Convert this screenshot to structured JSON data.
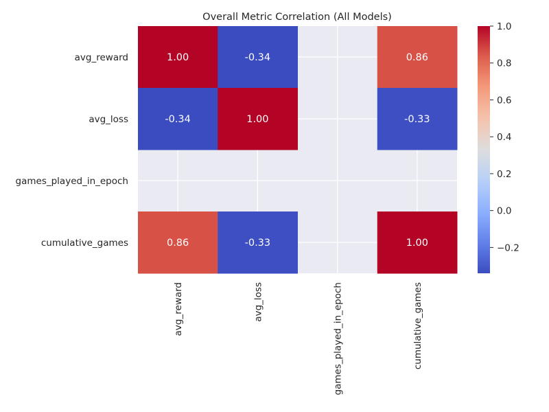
{
  "chart_data": {
    "type": "heatmap",
    "title": "Overall Metric Correlation (All Models)",
    "xlabel": "",
    "ylabel": "",
    "rows": [
      "avg_reward",
      "avg_loss",
      "games_played_in_epoch",
      "cumulative_games"
    ],
    "columns": [
      "avg_reward",
      "avg_loss",
      "games_played_in_epoch",
      "cumulative_games"
    ],
    "values": [
      [
        1.0,
        -0.34,
        null,
        0.86
      ],
      [
        -0.34,
        1.0,
        null,
        -0.33
      ],
      [
        null,
        null,
        null,
        null
      ],
      [
        0.86,
        -0.33,
        null,
        1.0
      ]
    ],
    "annotations": [
      [
        "1.00",
        "-0.34",
        "",
        "0.86"
      ],
      [
        "-0.34",
        "1.00",
        "",
        "-0.33"
      ],
      [
        "",
        "",
        "",
        ""
      ],
      [
        "0.86",
        "-0.33",
        "",
        "1.00"
      ]
    ],
    "colormap": "coolwarm",
    "value_range": [
      -0.34,
      1.0
    ],
    "missing_color": "#eaeaf2",
    "grid": true,
    "colorbar": {
      "ticks": [
        1.0,
        0.8,
        0.6,
        0.4,
        0.2,
        0.0,
        -0.2
      ],
      "tick_labels": [
        "1.0",
        "0.8",
        "0.6",
        "0.4",
        "0.2",
        "0.0",
        "−0.2"
      ],
      "placement": "right"
    }
  }
}
